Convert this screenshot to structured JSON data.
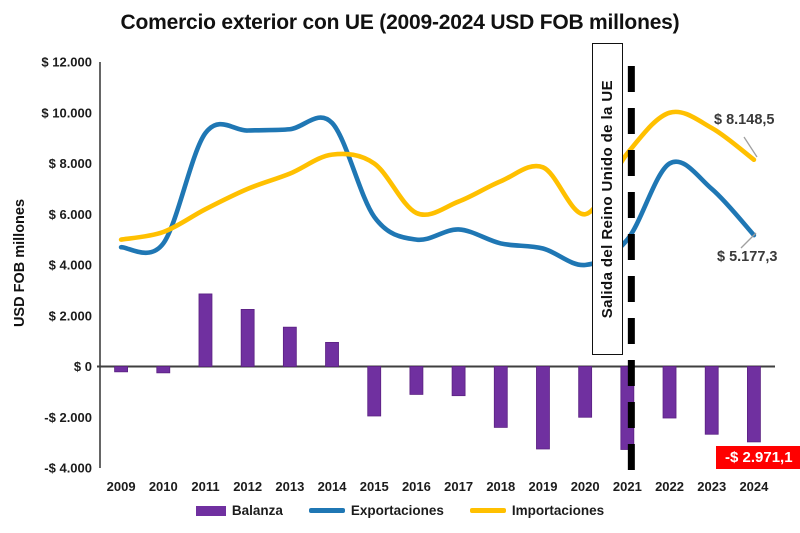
{
  "chart_data": {
    "type": "combo",
    "title": "Comercio exterior con UE (2009-2024 USD FOB millones)",
    "ylabel": "USD FOB millones",
    "categories": [
      "2009",
      "2010",
      "2011",
      "2012",
      "2013",
      "2014",
      "2015",
      "2016",
      "2017",
      "2018",
      "2019",
      "2020",
      "2021",
      "2022",
      "2023",
      "2024"
    ],
    "series": [
      {
        "name": "Balanza",
        "type": "bar",
        "color": "#7030A0",
        "values": [
          -210,
          -250,
          2860,
          2250,
          1550,
          950,
          -1950,
          -1100,
          -1150,
          -2400,
          -3250,
          -2000,
          -3270,
          -2030,
          -2670,
          -2971.1
        ]
      },
      {
        "name": "Exportaciones",
        "type": "line",
        "color": "#1F77B4",
        "values": [
          4700,
          4850,
          9200,
          9300,
          9350,
          9600,
          5900,
          5000,
          5400,
          4850,
          4650,
          4000,
          5000,
          8000,
          7000,
          5177.3
        ]
      },
      {
        "name": "Importaciones",
        "type": "line",
        "color": "#FFC000",
        "values": [
          5000,
          5300,
          6200,
          7000,
          7600,
          8350,
          8000,
          6050,
          6500,
          7300,
          7850,
          6000,
          8400,
          10000,
          9400,
          8148.5
        ]
      }
    ],
    "ylim": [
      -4000,
      12000
    ],
    "y_ticks": [
      {
        "value": 12000,
        "label": "$ 12.000"
      },
      {
        "value": 10000,
        "label": "$ 10.000"
      },
      {
        "value": 8000,
        "label": "$ 8.000"
      },
      {
        "value": 6000,
        "label": "$ 6.000"
      },
      {
        "value": 4000,
        "label": "$ 4.000"
      },
      {
        "value": 2000,
        "label": "$ 2.000"
      },
      {
        "value": 0,
        "label": "$ 0"
      },
      {
        "value": -2000,
        "label": "-$ 2.000"
      },
      {
        "value": -4000,
        "label": "-$ 4.000"
      }
    ],
    "grid": false,
    "legend_position": "bottom",
    "annotation": {
      "text": "Salida del Reino Unido de la UE",
      "dashed_line_year": "2021"
    },
    "end_labels": {
      "importaciones": "$ 8.148,5",
      "exportaciones": "$ 5.177,3",
      "balanza": "-$ 2.971,1"
    },
    "colors": {
      "balanza": "#7030A0",
      "balanza_edge": "#5B2182",
      "exportaciones": "#1F77B4",
      "importaciones": "#FFC000",
      "badge_background": "#FF0000",
      "badge_text": "#FFFFFF",
      "axis": "#3F3F3F",
      "dashed_line": "#000000",
      "leader_line": "#A0A0A0"
    }
  }
}
